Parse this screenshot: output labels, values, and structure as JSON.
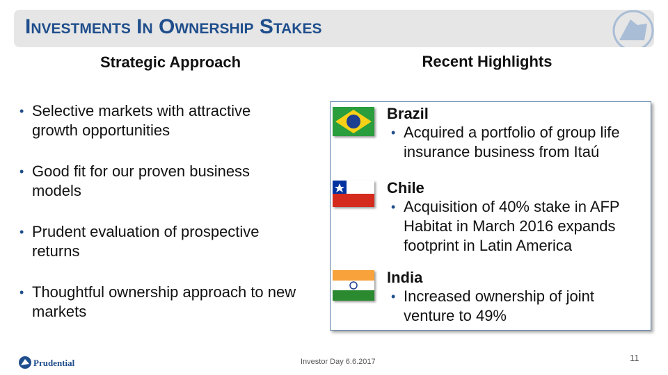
{
  "header": {
    "title": "Investments In Ownership Stakes"
  },
  "left": {
    "heading": "Strategic Approach",
    "bullets": [
      "Selective markets with attractive growth opportunities",
      "Good fit for our proven business models",
      "Prudent evaluation of prospective returns",
      "Thoughtful ownership approach to new markets"
    ]
  },
  "right": {
    "heading": "Recent Highlights",
    "items": [
      {
        "country": "Brazil",
        "text": "Acquired a portfolio of group life insurance business from Itaú"
      },
      {
        "country": "Chile",
        "text": "Acquisition of 40% stake in AFP Habitat in March 2016 expands footprint in Latin America"
      },
      {
        "country": "India",
        "text": "Increased ownership of joint venture to 49%"
      }
    ]
  },
  "footer": {
    "logo": "Prudential",
    "event": "Investor Day 6.6.2017",
    "page": "11"
  }
}
